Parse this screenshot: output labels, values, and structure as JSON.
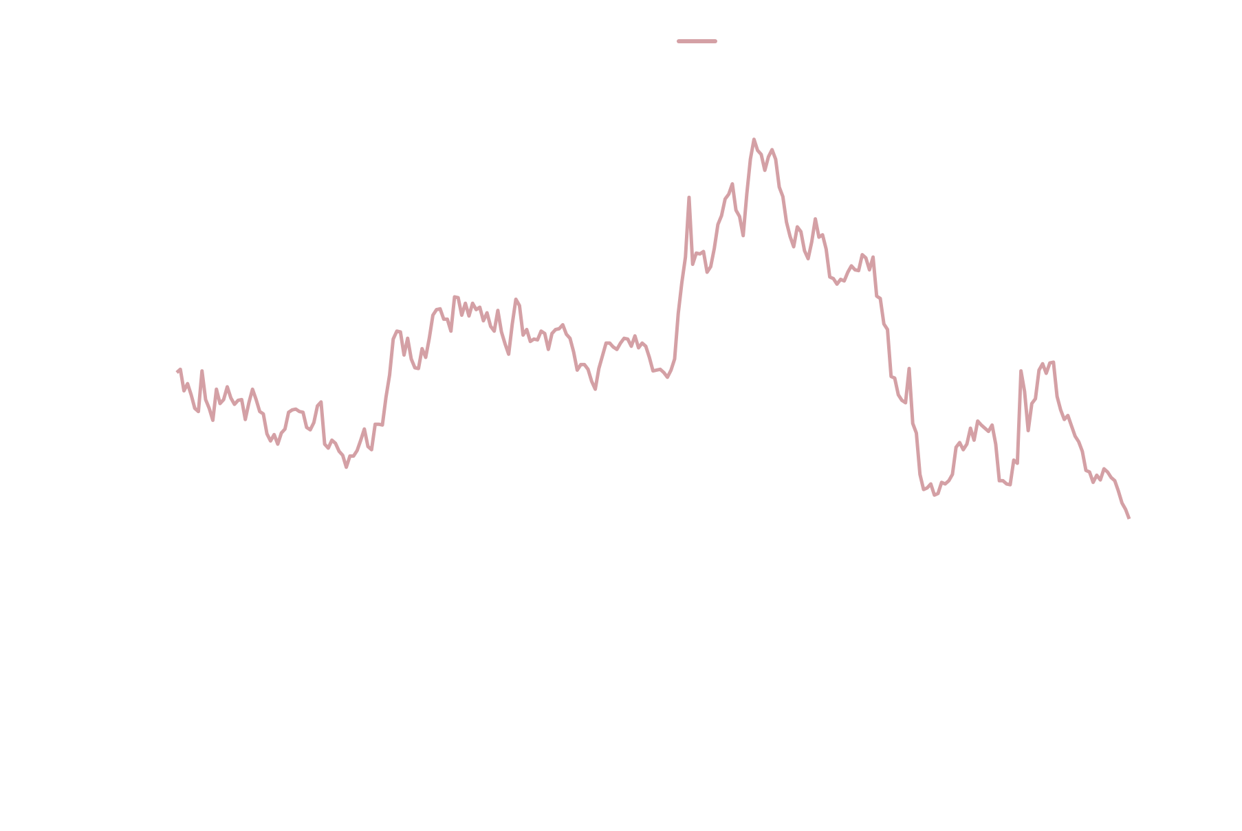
{
  "chart_data": {
    "type": "line",
    "ylim": [
      0,
      100
    ],
    "series": [
      {
        "color": "#d4a0a5",
        "values": [
          53.2,
          53.6,
          50.9,
          51.8,
          50.4,
          48.7,
          48.3,
          53.4,
          49.8,
          48.7,
          47.2,
          51.1,
          49.3,
          49.8,
          51.4,
          50,
          49.2,
          49.7,
          49.8,
          47.3,
          49.4,
          51.1,
          49.8,
          48.3,
          48,
          45.5,
          44.6,
          45.4,
          44.2,
          45.6,
          46.1,
          48.2,
          48.5,
          48.6,
          48.3,
          48.2,
          46.3,
          46,
          46.9,
          49,
          49.5,
          44.2,
          43.7,
          44.7,
          44.3,
          43.3,
          42.8,
          41.3,
          42.7,
          42.7,
          43.4,
          44.7,
          46.1,
          43.9,
          43.5,
          46.7,
          46.7,
          46.6,
          50.1,
          52.9,
          57.4,
          58.4,
          58.3,
          55.4,
          57.5,
          54.9,
          53.8,
          53.7,
          56.2,
          55.1,
          57.5,
          60.4,
          61.1,
          61.2,
          59.9,
          59.9,
          58.4,
          62.7,
          62.6,
          60.4,
          61.9,
          60.3,
          61.9,
          61.1,
          61.4,
          59.7,
          60.7,
          59,
          58.4,
          61,
          58.3,
          56.8,
          55.5,
          59.3,
          62.4,
          61.6,
          57.9,
          58.6,
          57.1,
          57.4,
          57.3,
          58.4,
          58.1,
          56.1,
          58.1,
          58.6,
          58.7,
          59.2,
          58,
          57.5,
          55.8,
          53.5,
          54.2,
          54.2,
          53.6,
          52.1,
          51.1,
          53.7,
          55.3,
          56.9,
          56.9,
          56.4,
          56.1,
          56.9,
          57.5,
          57.4,
          56.5,
          57.8,
          56.3,
          56.9,
          56.5,
          55.1,
          53.4,
          53.5,
          53.6,
          53.2,
          52.6,
          53.5,
          54.9,
          60.6,
          64.5,
          67.7,
          75.2,
          66.8,
          68.2,
          68.1,
          68.4,
          65.8,
          66.5,
          68.8,
          71.8,
          72.9,
          75,
          75.6,
          76.9,
          73.6,
          72.8,
          70.4,
          75.6,
          80,
          82.5,
          81.1,
          80.6,
          78.6,
          80.3,
          81.2,
          80,
          76.5,
          75.3,
          72.1,
          70.3,
          69,
          71.5,
          70.9,
          68.5,
          67.5,
          69.6,
          72.5,
          70.2,
          70.5,
          68.7,
          65.2,
          65,
          64.3,
          64.9,
          64.7,
          65.8,
          66.6,
          66.1,
          66,
          68,
          67.6,
          66.1,
          67.7,
          62.8,
          62.5,
          59.3,
          58.6,
          52.7,
          52.5,
          50.4,
          49.7,
          49.4,
          53.7,
          46.8,
          45.6,
          40.4,
          38.5,
          38.7,
          39.2,
          37.8,
          38,
          39.4,
          39.2,
          39.6,
          40.4,
          43.8,
          44.4,
          43.5,
          44.2,
          46.2,
          44.7,
          47.1,
          46.6,
          46.2,
          45.8,
          46.6,
          44.2,
          39.6,
          39.6,
          39.2,
          39.1,
          42.2,
          41.8,
          53.4,
          50.8,
          45.9,
          49.3,
          49.9,
          53.5,
          54.3,
          53.1,
          54.4,
          54.5,
          50.2,
          48.5,
          47.3,
          47.8,
          46.5,
          45.2,
          44.5,
          43.3,
          40.9,
          40.7,
          39.4,
          40.3,
          39.7,
          41.1,
          40.7,
          40,
          39.6,
          38.3,
          36.8,
          36,
          34.8
        ]
      }
    ]
  }
}
